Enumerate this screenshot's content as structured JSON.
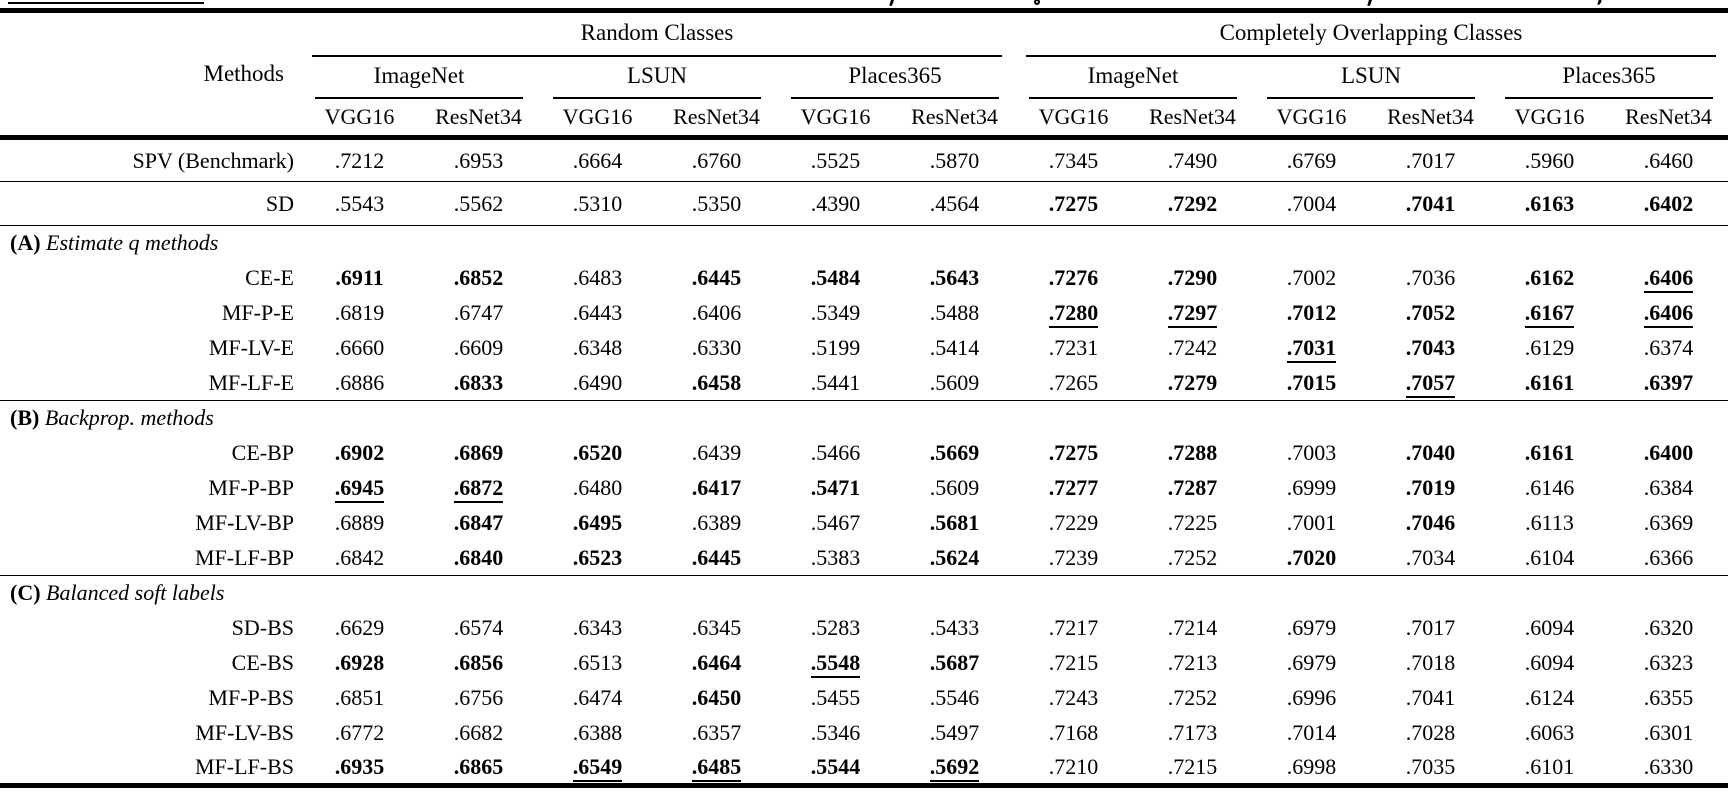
{
  "cropped_caption": {
    "note_visible_fragments": "y g y ,",
    "has_underlined_segment": true
  },
  "table": {
    "methods_header": "Methods",
    "arch_pair": [
      "VGG16",
      "ResNet34"
    ],
    "col_groups": [
      {
        "label": "Random Classes",
        "datasets": [
          "ImageNet",
          "LSUN",
          "Places365"
        ]
      },
      {
        "label": "Completely Overlapping Classes",
        "datasets": [
          "ImageNet",
          "LSUN",
          "Places365"
        ]
      }
    ],
    "rows": [
      {
        "type": "data",
        "method": "SPV (Benchmark)",
        "tall": true,
        "rule_after": true,
        "cells": [
          ".7212",
          ".6953",
          ".6664",
          ".6760",
          ".5525",
          ".5870",
          ".7345",
          ".7490",
          ".6769",
          ".7017",
          ".5960",
          ".6460"
        ],
        "styles": ",,,,,,,,,,,"
      },
      {
        "type": "data",
        "method": "SD",
        "tall": true,
        "rule_after": true,
        "cells": [
          ".5543",
          ".5562",
          ".5310",
          ".5350",
          ".4390",
          ".4564",
          ".7275",
          ".7292",
          ".7004",
          ".7041",
          ".6163",
          ".6402"
        ],
        "styles": ",,,,,,b,b,,b,b,b"
      },
      {
        "type": "section",
        "tag": "(A)",
        "label": "Estimate q methods"
      },
      {
        "type": "data",
        "method": "CE-E",
        "cells": [
          ".6911",
          ".6852",
          ".6483",
          ".6445",
          ".5484",
          ".5643",
          ".7276",
          ".7290",
          ".7002",
          ".7036",
          ".6162",
          ".6406"
        ],
        "styles": "b,b,,b,b,b,b,b,,,b,bu"
      },
      {
        "type": "data",
        "method": "MF-P-E",
        "cells": [
          ".6819",
          ".6747",
          ".6443",
          ".6406",
          ".5349",
          ".5488",
          ".7280",
          ".7297",
          ".7012",
          ".7052",
          ".6167",
          ".6406"
        ],
        "styles": ",,,,,,bu,bu,b,b,bu,bu"
      },
      {
        "type": "data",
        "method": "MF-LV-E",
        "cells": [
          ".6660",
          ".6609",
          ".6348",
          ".6330",
          ".5199",
          ".5414",
          ".7231",
          ".7242",
          ".7031",
          ".7043",
          ".6129",
          ".6374"
        ],
        "styles": ",,,,,,,,bu,b,,"
      },
      {
        "type": "data",
        "method": "MF-LF-E",
        "rule_after": true,
        "cells": [
          ".6886",
          ".6833",
          ".6490",
          ".6458",
          ".5441",
          ".5609",
          ".7265",
          ".7279",
          ".7015",
          ".7057",
          ".6161",
          ".6397"
        ],
        "styles": ",b,,b,,,,b,b,bu,b,b"
      },
      {
        "type": "section",
        "tag": "(B)",
        "label": "Backprop. methods"
      },
      {
        "type": "data",
        "method": "CE-BP",
        "cells": [
          ".6902",
          ".6869",
          ".6520",
          ".6439",
          ".5466",
          ".5669",
          ".7275",
          ".7288",
          ".7003",
          ".7040",
          ".6161",
          ".6400"
        ],
        "styles": "b,b,b,,,b,b,b,,b,b,b"
      },
      {
        "type": "data",
        "method": "MF-P-BP",
        "cells": [
          ".6945",
          ".6872",
          ".6480",
          ".6417",
          ".5471",
          ".5609",
          ".7277",
          ".7287",
          ".6999",
          ".7019",
          ".6146",
          ".6384"
        ],
        "styles": "bu,bu,,b,b,,b,b,,b,,"
      },
      {
        "type": "data",
        "method": "MF-LV-BP",
        "cells": [
          ".6889",
          ".6847",
          ".6495",
          ".6389",
          ".5467",
          ".5681",
          ".7229",
          ".7225",
          ".7001",
          ".7046",
          ".6113",
          ".6369"
        ],
        "styles": ",b,b,,,b,,,,b,,"
      },
      {
        "type": "data",
        "method": "MF-LF-BP",
        "rule_after": true,
        "cells": [
          ".6842",
          ".6840",
          ".6523",
          ".6445",
          ".5383",
          ".5624",
          ".7239",
          ".7252",
          ".7020",
          ".7034",
          ".6104",
          ".6366"
        ],
        "styles": ",b,b,b,,b,,,b,,,"
      },
      {
        "type": "section",
        "tag": "(C)",
        "label": "Balanced soft labels"
      },
      {
        "type": "data",
        "method": "SD-BS",
        "cells": [
          ".6629",
          ".6574",
          ".6343",
          ".6345",
          ".5283",
          ".5433",
          ".7217",
          ".7214",
          ".6979",
          ".7017",
          ".6094",
          ".6320"
        ],
        "styles": ",,,,,,,,,,,"
      },
      {
        "type": "data",
        "method": "CE-BS",
        "cells": [
          ".6928",
          ".6856",
          ".6513",
          ".6464",
          ".5548",
          ".5687",
          ".7215",
          ".7213",
          ".6979",
          ".7018",
          ".6094",
          ".6323"
        ],
        "styles": "b,b,,b,bu,b,,,,,,"
      },
      {
        "type": "data",
        "method": "MF-P-BS",
        "cells": [
          ".6851",
          ".6756",
          ".6474",
          ".6450",
          ".5455",
          ".5546",
          ".7243",
          ".7252",
          ".6996",
          ".7041",
          ".6124",
          ".6355"
        ],
        "styles": ",,,b,,,,,,,,"
      },
      {
        "type": "data",
        "method": "MF-LV-BS",
        "cells": [
          ".6772",
          ".6682",
          ".6388",
          ".6357",
          ".5346",
          ".5497",
          ".7168",
          ".7173",
          ".7014",
          ".7028",
          ".6063",
          ".6301"
        ],
        "styles": ",,,,,,,,,,,"
      },
      {
        "type": "data",
        "method": "MF-LF-BS",
        "cells": [
          ".6935",
          ".6865",
          ".6549",
          ".6485",
          ".5544",
          ".5692",
          ".7210",
          ".7215",
          ".6998",
          ".7035",
          ".6101",
          ".6330"
        ],
        "styles": "b,b,bu,bu,b,bu,,,,,,"
      }
    ]
  }
}
